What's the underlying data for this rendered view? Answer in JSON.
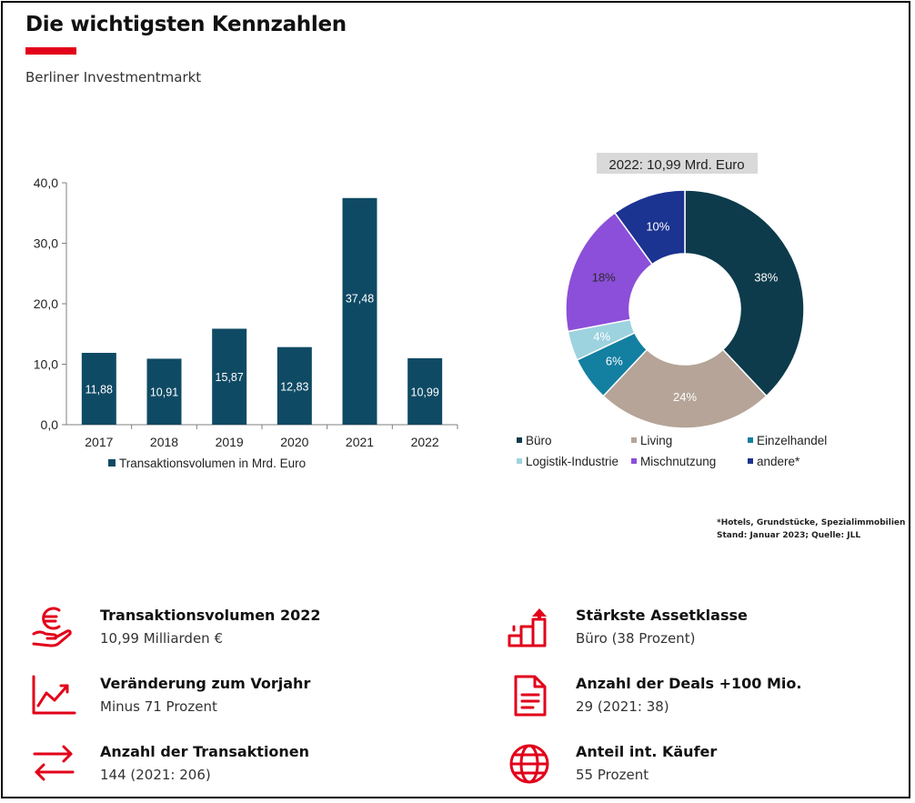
{
  "header": {
    "title": "Die wichtigsten Kennzahlen",
    "subtitle": "Berliner Investmentmarkt"
  },
  "colors": {
    "accent": "#e2001a",
    "bar": "#0f4a64"
  },
  "chart_data": [
    {
      "type": "bar",
      "categories": [
        "2017",
        "2018",
        "2019",
        "2020",
        "2021",
        "2022"
      ],
      "series": [
        {
          "name": "Transaktionsvolumen in Mrd. Euro",
          "values": [
            11.88,
            10.91,
            15.87,
            12.83,
            37.48,
            10.99
          ]
        }
      ],
      "value_labels": [
        "11,88",
        "10,91",
        "15,87",
        "12,83",
        "37,48",
        "10,99"
      ],
      "yticks": [
        "0,0",
        "10,0",
        "20,0",
        "30,0",
        "40,0"
      ],
      "ylim": [
        0,
        40
      ],
      "legend": "bottom"
    },
    {
      "type": "pie",
      "title": "2022: 10,99 Mrd. Euro",
      "slices": [
        {
          "label": "Büro",
          "value": 38,
          "text": "38%",
          "color": "#0d3b4b",
          "text_color": "#ffffff"
        },
        {
          "label": "Living",
          "value": 24,
          "text": "24%",
          "color": "#b5a497",
          "text_color": "#ffffff"
        },
        {
          "label": "Einzelhandel",
          "value": 6,
          "text": "6%",
          "color": "#137fa1",
          "text_color": "#ffffff"
        },
        {
          "label": "Logistik-Industrie",
          "value": 4,
          "text": "4%",
          "color": "#9dd2df",
          "text_color": "#ffffff"
        },
        {
          "label": "Mischnutzung",
          "value": 18,
          "text": "18%",
          "color": "#8c4fd9",
          "text_color": "#2a2a2a"
        },
        {
          "label": "andere*",
          "value": 10,
          "text": "10%",
          "color": "#1b3391",
          "text_color": "#ffffff"
        }
      ],
      "legend": "bottom"
    }
  ],
  "footnote": {
    "line1": "*Hotels, Grundstücke, Spezialimmobilien",
    "line2": "Stand: Januar 2023; Quelle: JLL"
  },
  "kpis": [
    {
      "icon": "euro-hand-icon",
      "title": "Transaktionsvolumen 2022",
      "value": "10,99 Milliarden €"
    },
    {
      "icon": "trend-chart-icon",
      "title": "Veränderung zum Vorjahr",
      "value": "Minus 71 Prozent"
    },
    {
      "icon": "exchange-arrows-icon",
      "title": "Anzahl der Transaktionen",
      "value": "144 (2021: 206)"
    },
    {
      "icon": "stairs-arrow-icon",
      "title": "Stärkste Assetklasse",
      "value": "Büro (38 Prozent)"
    },
    {
      "icon": "document-icon",
      "title": "Anzahl der Deals +100 Mio.",
      "value": "29 (2021: 38)"
    },
    {
      "icon": "globe-icon",
      "title": "Anteil int. Käufer",
      "value": "55 Prozent"
    }
  ]
}
